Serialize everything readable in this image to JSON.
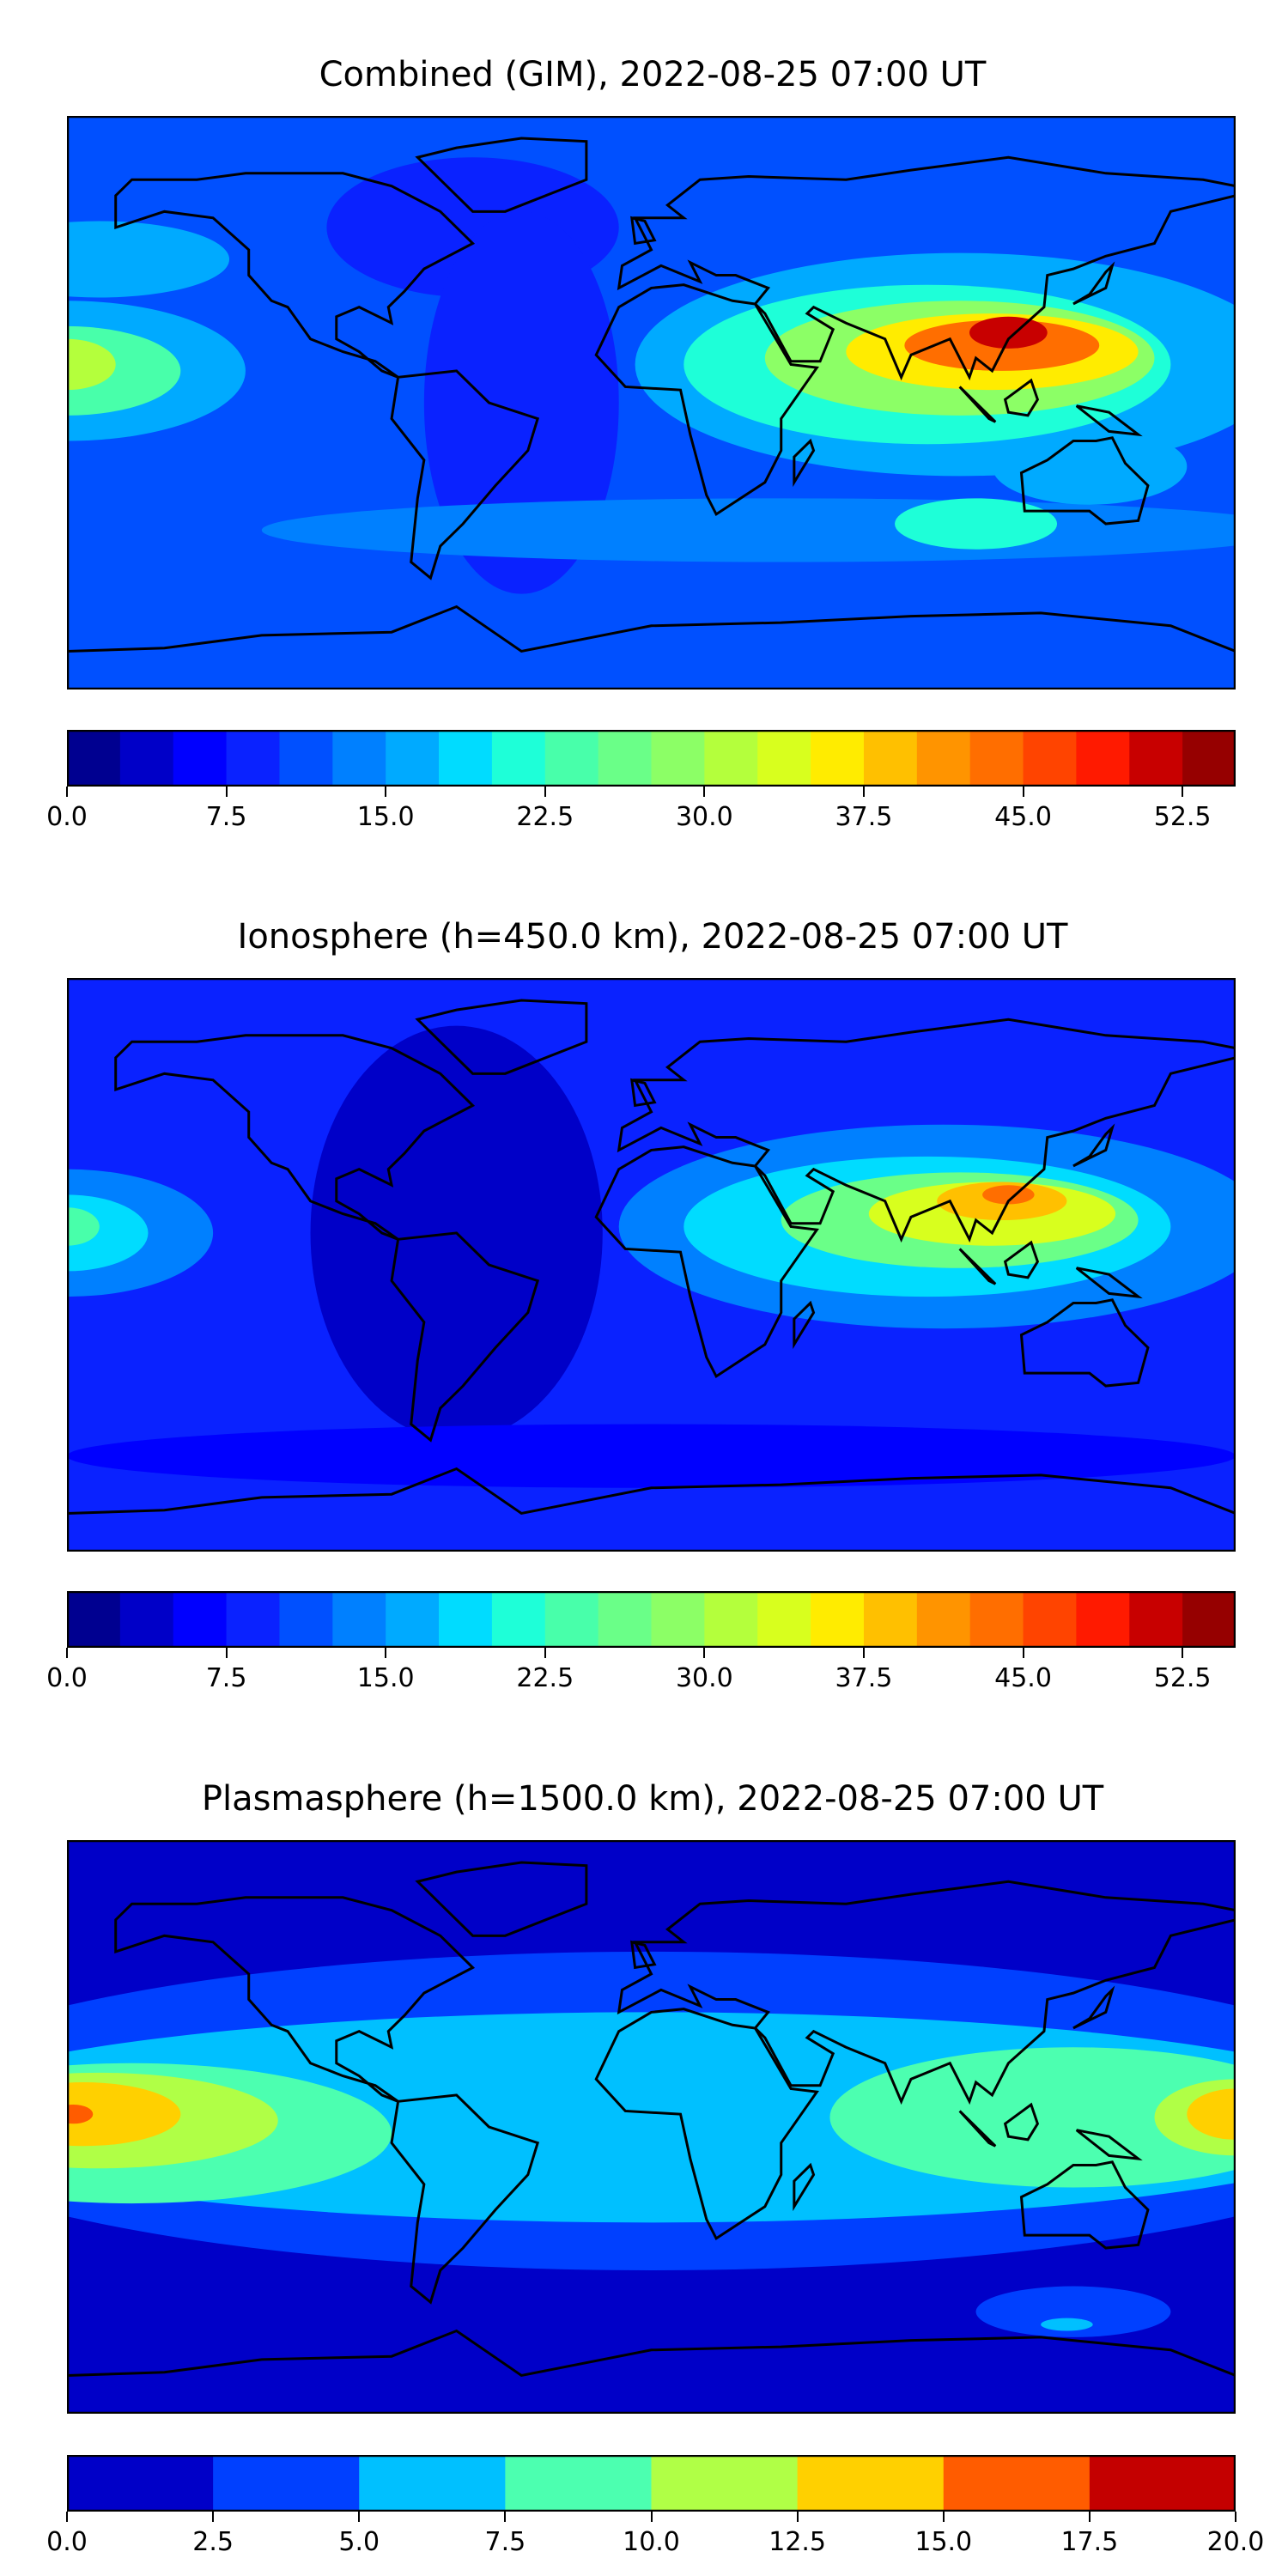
{
  "chart_data": [
    {
      "type": "heatmap",
      "title": "Combined (GIM), 2022-08-25 07:00 UT",
      "projection": "global lon/lat",
      "levels": [
        0,
        2.5,
        5,
        7.5,
        10,
        12.5,
        15,
        17.5,
        20,
        22.5,
        25,
        27.5,
        30,
        32.5,
        35,
        37.5,
        40,
        42.5,
        45,
        47.5,
        50,
        52.5,
        55
      ],
      "colors": [
        "#000090",
        "#0000c8",
        "#0000ff",
        "#0a22ff",
        "#0050ff",
        "#0080ff",
        "#00aaff",
        "#00dcff",
        "#1effd8",
        "#48ffaa",
        "#6aff88",
        "#8cff66",
        "#b4ff3c",
        "#d8ff1e",
        "#ffec00",
        "#ffc000",
        "#ff9400",
        "#ff6e00",
        "#ff4400",
        "#ff1a00",
        "#c80000",
        "#960000"
      ],
      "colorbar_ticks": [
        "0.0",
        "7.5",
        "15.0",
        "22.5",
        "30.0",
        "37.5",
        "45.0",
        "52.5"
      ],
      "colorbar_tick_values": [
        0,
        7.5,
        15,
        22.5,
        30,
        37.5,
        45,
        52.5
      ],
      "background_value": 11,
      "features": [
        {
          "name": "n-atlantic-low",
          "lon": -55,
          "lat": 55,
          "rlon": 45,
          "rlat": 22,
          "value": 8
        },
        {
          "name": "americas-low",
          "lon": -40,
          "lat": 0,
          "rlon": 30,
          "rlat": 60,
          "value": 9
        },
        {
          "name": "south-band",
          "lon": 40,
          "lat": -40,
          "rlon": 160,
          "rlat": 10,
          "value": 14
        },
        {
          "name": "pacific-west",
          "lon": -180,
          "lat": 10,
          "rlon": 55,
          "rlat": 22,
          "value": 17
        },
        {
          "name": "pacific-west-2",
          "lon": -180,
          "lat": 10,
          "rlon": 35,
          "rlat": 14,
          "value": 24
        },
        {
          "name": "pacific-west-3",
          "lon": -180,
          "lat": 12,
          "rlon": 15,
          "rlat": 8,
          "value": 32
        },
        {
          "name": "pacific-north",
          "lon": -170,
          "lat": 45,
          "rlon": 40,
          "rlat": 12,
          "value": 15
        },
        {
          "name": "east-asia-band",
          "lon": 95,
          "lat": 12,
          "rlon": 100,
          "rlat": 35,
          "value": 17
        },
        {
          "name": "africa-asia",
          "lon": 85,
          "lat": 12,
          "rlon": 75,
          "rlat": 25,
          "value": 22
        },
        {
          "name": "asia-1",
          "lon": 95,
          "lat": 14,
          "rlon": 60,
          "rlat": 18,
          "value": 29
        },
        {
          "name": "asia-2",
          "lon": 105,
          "lat": 16,
          "rlon": 45,
          "rlat": 12,
          "value": 37
        },
        {
          "name": "asia-3",
          "lon": 108,
          "lat": 18,
          "rlon": 30,
          "rlat": 8,
          "value": 43
        },
        {
          "name": "asia-4",
          "lon": 110,
          "lat": 22,
          "rlon": 12,
          "rlat": 5,
          "value": 52
        },
        {
          "name": "s-indian",
          "lon": 100,
          "lat": -38,
          "rlon": 25,
          "rlat": 8,
          "value": 22
        },
        {
          "name": "australia",
          "lon": 135,
          "lat": -20,
          "rlon": 30,
          "rlat": 12,
          "value": 17
        }
      ]
    },
    {
      "type": "heatmap",
      "title": "Ionosphere  (h=450.0 km), 2022-08-25 07:00 UT",
      "projection": "global lon/lat",
      "levels": [
        0,
        2.5,
        5,
        7.5,
        10,
        12.5,
        15,
        17.5,
        20,
        22.5,
        25,
        27.5,
        30,
        32.5,
        35,
        37.5,
        40,
        42.5,
        45,
        47.5,
        50,
        52.5,
        55
      ],
      "colors": [
        "#000090",
        "#0000c8",
        "#0000ff",
        "#0a22ff",
        "#0050ff",
        "#0080ff",
        "#00aaff",
        "#00dcff",
        "#1effd8",
        "#48ffaa",
        "#6aff88",
        "#8cff66",
        "#b4ff3c",
        "#d8ff1e",
        "#ffec00",
        "#ffc000",
        "#ff9400",
        "#ff6e00",
        "#ff4400",
        "#ff1a00",
        "#c80000",
        "#960000"
      ],
      "colorbar_ticks": [
        "0.0",
        "7.5",
        "15.0",
        "22.5",
        "30.0",
        "37.5",
        "45.0",
        "52.5"
      ],
      "colorbar_tick_values": [
        0,
        7.5,
        15,
        22.5,
        30,
        37.5,
        45,
        52.5
      ],
      "background_value": 9,
      "features": [
        {
          "name": "americas-low",
          "lon": -60,
          "lat": 10,
          "rlon": 45,
          "rlat": 65,
          "value": 4
        },
        {
          "name": "south-low",
          "lon": 0,
          "lat": -60,
          "rlon": 180,
          "rlat": 10,
          "value": 5
        },
        {
          "name": "pacific-west",
          "lon": -180,
          "lat": 10,
          "rlon": 45,
          "rlat": 20,
          "value": 13
        },
        {
          "name": "pacific-west-2",
          "lon": -180,
          "lat": 10,
          "rlon": 25,
          "rlat": 12,
          "value": 19
        },
        {
          "name": "pacific-west-3",
          "lon": -180,
          "lat": 12,
          "rlon": 10,
          "rlat": 6,
          "value": 24
        },
        {
          "name": "east-band",
          "lon": 90,
          "lat": 12,
          "rlon": 100,
          "rlat": 32,
          "value": 14
        },
        {
          "name": "africa-asia",
          "lon": 85,
          "lat": 12,
          "rlon": 75,
          "rlat": 22,
          "value": 19
        },
        {
          "name": "asia-1",
          "lon": 95,
          "lat": 14,
          "rlon": 55,
          "rlat": 15,
          "value": 26
        },
        {
          "name": "asia-2",
          "lon": 105,
          "lat": 16,
          "rlon": 38,
          "rlat": 10,
          "value": 33
        },
        {
          "name": "asia-3",
          "lon": 108,
          "lat": 20,
          "rlon": 20,
          "rlat": 6,
          "value": 38
        },
        {
          "name": "asia-4",
          "lon": 110,
          "lat": 22,
          "rlon": 8,
          "rlat": 3,
          "value": 44
        }
      ]
    },
    {
      "type": "heatmap",
      "title": "Plasmasphere (h=1500.0 km), 2022-08-25 07:00 UT",
      "projection": "global lon/lat",
      "levels": [
        0,
        2.5,
        5,
        7.5,
        10,
        12.5,
        15,
        17.5,
        20
      ],
      "colors": [
        "#0000c8",
        "#0040ff",
        "#00c0ff",
        "#4cffb0",
        "#b0ff46",
        "#ffd000",
        "#ff5c00",
        "#c40000"
      ],
      "colorbar_ticks": [
        "0.0",
        "2.5",
        "5.0",
        "7.5",
        "10.0",
        "12.5",
        "15.0",
        "17.5",
        "20.0"
      ],
      "colorbar_tick_values": [
        0,
        2.5,
        5,
        7.5,
        10,
        12.5,
        15,
        17.5,
        20
      ],
      "background_value": 1,
      "features": [
        {
          "name": "band-mid",
          "lon": 0,
          "lat": 5,
          "rlon": 240,
          "rlat": 50,
          "value": 3.5
        },
        {
          "name": "band-core",
          "lon": 0,
          "lat": 3,
          "rlon": 230,
          "rlat": 33,
          "value": 6
        },
        {
          "name": "south-pole-patch",
          "lon": 130,
          "lat": -58,
          "rlon": 30,
          "rlat": 8,
          "value": 3.5
        },
        {
          "name": "south-pole-patch-2",
          "lon": 128,
          "lat": -62,
          "rlon": 8,
          "rlat": 2,
          "value": 6
        },
        {
          "name": "pacific-east",
          "lon": -160,
          "lat": -2,
          "rlon": 80,
          "rlat": 22,
          "value": 8.5
        },
        {
          "name": "indian-pacific",
          "lon": 130,
          "lat": 3,
          "rlon": 75,
          "rlat": 22,
          "value": 8.5
        },
        {
          "name": "pacific-east-2",
          "lon": -170,
          "lat": 2,
          "rlon": 55,
          "rlat": 15,
          "value": 11
        },
        {
          "name": "pacific-west-edge",
          "lon": 180,
          "lat": 3,
          "rlon": 25,
          "rlat": 12,
          "value": 11
        },
        {
          "name": "pacific-east-3",
          "lon": -175,
          "lat": 4,
          "rlon": 30,
          "rlat": 10,
          "value": 13.5
        },
        {
          "name": "pacific-west-edge-2",
          "lon": 180,
          "lat": 4,
          "rlon": 15,
          "rlat": 8,
          "value": 13.5
        },
        {
          "name": "peak",
          "lon": -178,
          "lat": 4,
          "rlon": 6,
          "rlat": 3,
          "value": 16
        }
      ]
    }
  ]
}
